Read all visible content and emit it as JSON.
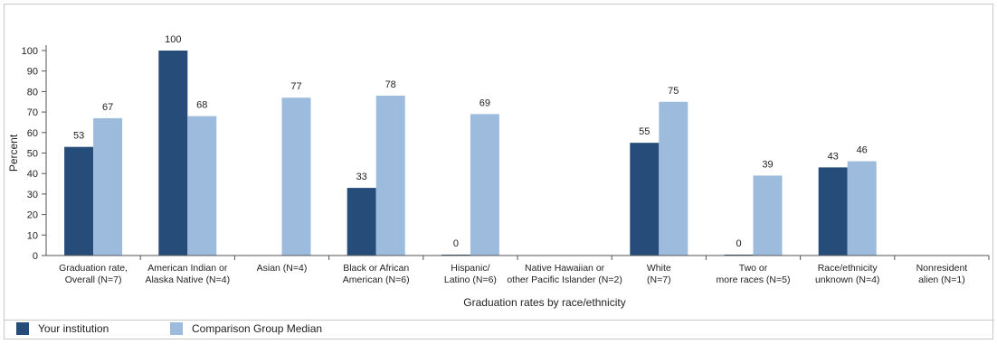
{
  "chart_data": {
    "type": "bar",
    "xlabel": "Graduation rates by race/ethnicity",
    "ylabel": "Percent",
    "ylim": [
      0,
      100
    ],
    "yticks": [
      0,
      10,
      20,
      30,
      40,
      50,
      60,
      70,
      80,
      90,
      100
    ],
    "grid": false,
    "legend_placement": "bottom-left",
    "categories": [
      [
        "Graduation rate,",
        "Overall (N=7)"
      ],
      [
        "American Indian or",
        "Alaska Native (N=4)"
      ],
      [
        "Asian (N=4)"
      ],
      [
        "Black or African",
        "American (N=6)"
      ],
      [
        "Hispanic/",
        "Latino (N=6)"
      ],
      [
        "Native Hawaiian or",
        "other Pacific Islander (N=2)"
      ],
      [
        "White",
        "(N=7)"
      ],
      [
        "Two or",
        "more races (N=5)"
      ],
      [
        "Race/ethnicity",
        "unknown (N=4)"
      ],
      [
        "Nonresident",
        "alien (N=1)"
      ]
    ],
    "series": [
      {
        "name": "Your institution",
        "color": "#264d7a",
        "values": [
          53,
          100,
          null,
          33,
          0,
          null,
          55,
          0,
          43,
          null
        ]
      },
      {
        "name": "Comparison Group Median",
        "color": "#9dbbdd",
        "values": [
          67,
          68,
          77,
          78,
          69,
          null,
          75,
          39,
          46,
          null
        ]
      }
    ]
  }
}
